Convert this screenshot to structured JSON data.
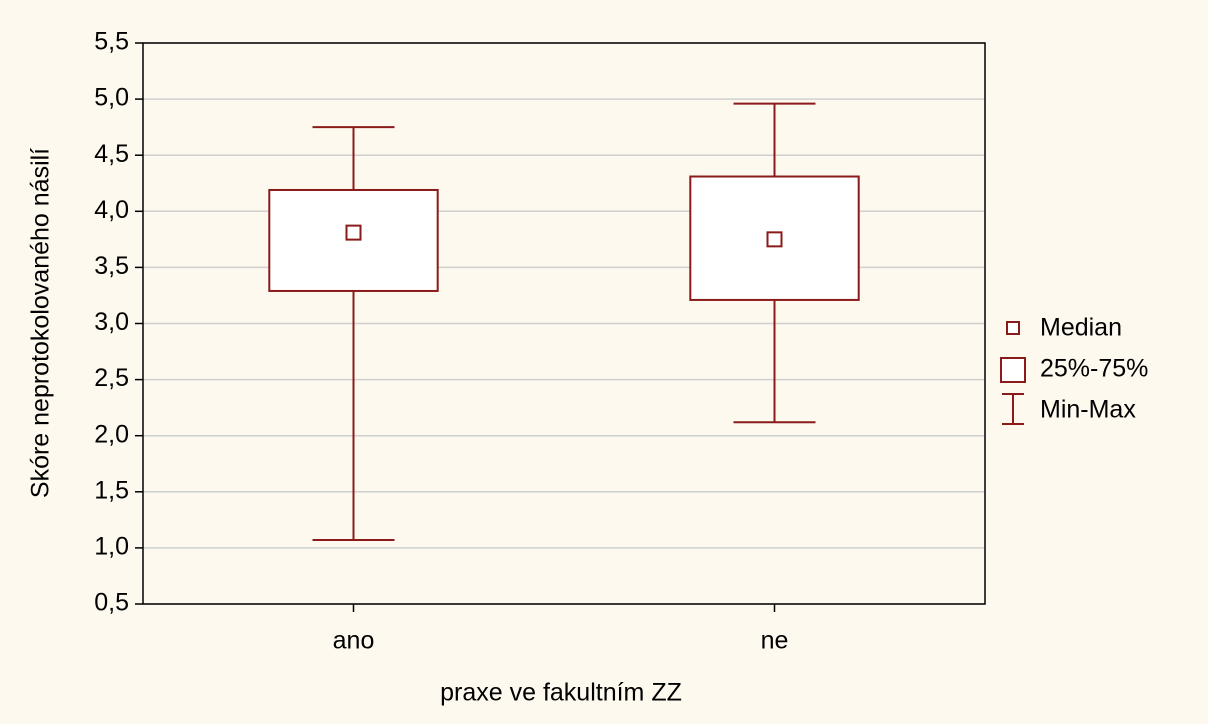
{
  "chart_data": {
    "type": "box",
    "xlabel": "praxe ve fakultním ZZ",
    "ylabel": "Skóre neprotokolovaného násilí",
    "categories": [
      "ano",
      "ne"
    ],
    "min": [
      1.07,
      2.12
    ],
    "q1": [
      3.29,
      3.21
    ],
    "median": [
      3.81,
      3.75
    ],
    "q3": [
      4.19,
      4.31
    ],
    "max": [
      4.75,
      4.96
    ],
    "color": "#8b1a1a",
    "ylim": [
      0.5,
      5.5
    ],
    "yticks": [
      {
        "value": 0.5,
        "label": "0,5"
      },
      {
        "value": 1.0,
        "label": "1,0"
      },
      {
        "value": 1.5,
        "label": "1,5"
      },
      {
        "value": 2.0,
        "label": "2,0"
      },
      {
        "value": 2.5,
        "label": "2,5"
      },
      {
        "value": 3.0,
        "label": "3,0"
      },
      {
        "value": 3.5,
        "label": "3,5"
      },
      {
        "value": 4.0,
        "label": "4,0"
      },
      {
        "value": 4.5,
        "label": "4,5"
      },
      {
        "value": 5.0,
        "label": "5,0"
      },
      {
        "value": 5.5,
        "label": "5,5"
      }
    ],
    "grid": true,
    "legend": {
      "median": "Median",
      "box": "25%-75%",
      "whisker": "Min-Max"
    }
  }
}
